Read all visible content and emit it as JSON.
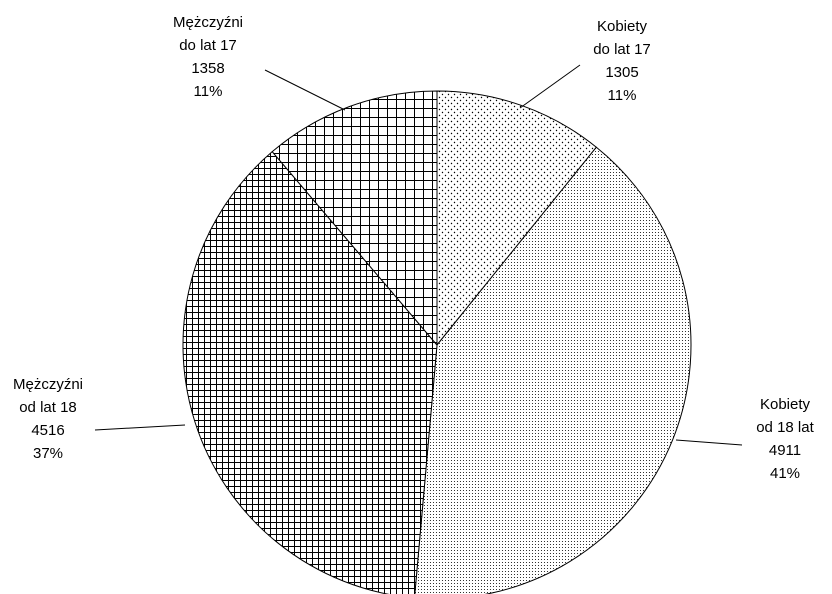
{
  "chart_data": {
    "type": "pie",
    "categories": [
      "Kobiety do lat 17",
      "Kobiety od 18 lat",
      "Mężczyźni od lat 18",
      "Mężczyźni do lat 17"
    ],
    "values": [
      1305,
      4911,
      4516,
      1358
    ],
    "percent_labels": [
      "11%",
      "41%",
      "37%",
      "11%"
    ]
  }
}
